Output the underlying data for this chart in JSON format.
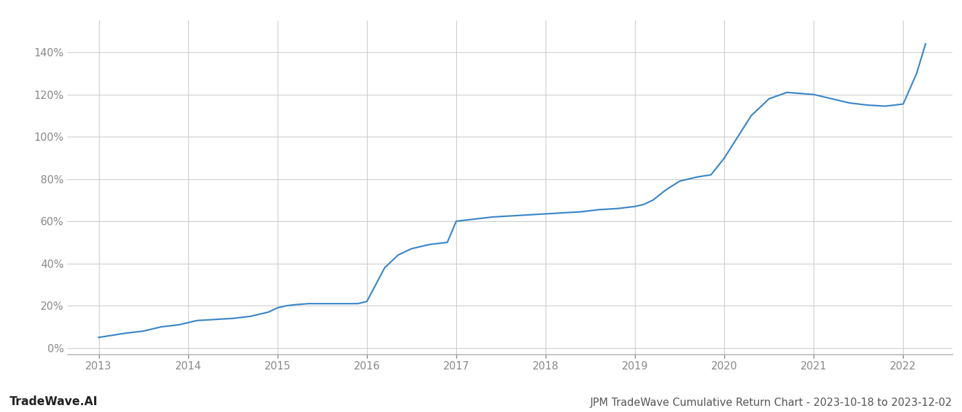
{
  "title": "JPM TradeWave Cumulative Return Chart - 2023-10-18 to 2023-12-02",
  "watermark": "TradeWave.AI",
  "line_color": "#3a86c8",
  "background_color": "#ffffff",
  "grid_color": "#cccccc",
  "x_years": [
    2013,
    2014,
    2015,
    2016,
    2017,
    2018,
    2019,
    2020,
    2021,
    2022
  ],
  "x_values": [
    2013.0,
    2013.15,
    2013.3,
    2013.5,
    2013.7,
    2013.9,
    2014.1,
    2014.3,
    2014.5,
    2014.7,
    2014.9,
    2015.0,
    2015.1,
    2015.2,
    2015.35,
    2015.5,
    2015.7,
    2015.9,
    2016.0,
    2016.1,
    2016.2,
    2016.35,
    2016.5,
    2016.7,
    2016.9,
    2017.0,
    2017.2,
    2017.4,
    2017.6,
    2017.8,
    2018.0,
    2018.2,
    2018.4,
    2018.6,
    2018.8,
    2019.0,
    2019.1,
    2019.2,
    2019.35,
    2019.5,
    2019.6,
    2019.7,
    2019.85,
    2020.0,
    2020.15,
    2020.3,
    2020.5,
    2020.7,
    2021.0,
    2021.2,
    2021.4,
    2021.6,
    2021.8,
    2022.0,
    2022.15,
    2022.25
  ],
  "y_values": [
    0.05,
    0.06,
    0.07,
    0.08,
    0.1,
    0.11,
    0.13,
    0.135,
    0.14,
    0.15,
    0.17,
    0.19,
    0.2,
    0.205,
    0.21,
    0.21,
    0.21,
    0.21,
    0.22,
    0.3,
    0.38,
    0.44,
    0.47,
    0.49,
    0.5,
    0.6,
    0.61,
    0.62,
    0.625,
    0.63,
    0.635,
    0.64,
    0.645,
    0.655,
    0.66,
    0.67,
    0.68,
    0.7,
    0.75,
    0.79,
    0.8,
    0.81,
    0.82,
    0.9,
    1.0,
    1.1,
    1.18,
    1.21,
    1.2,
    1.18,
    1.16,
    1.15,
    1.145,
    1.155,
    1.3,
    1.44
  ],
  "yticks": [
    0.0,
    0.2,
    0.4,
    0.6,
    0.8,
    1.0,
    1.2,
    1.4
  ],
  "ytick_labels": [
    "0%",
    "20%",
    "40%",
    "60%",
    "80%",
    "100%",
    "120%",
    "140%"
  ],
  "xlim": [
    2012.65,
    2022.55
  ],
  "ylim": [
    -0.03,
    1.55
  ],
  "title_fontsize": 11,
  "watermark_fontsize": 12,
  "tick_color": "#888888",
  "tick_fontsize": 11,
  "line_width": 1.6
}
